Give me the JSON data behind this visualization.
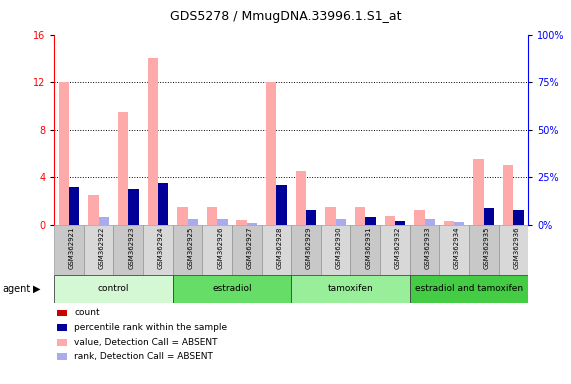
{
  "title": "GDS5278 / MmugDNA.33996.1.S1_at",
  "samples": [
    "GSM362921",
    "GSM362922",
    "GSM362923",
    "GSM362924",
    "GSM362925",
    "GSM362926",
    "GSM362927",
    "GSM362928",
    "GSM362929",
    "GSM362930",
    "GSM362931",
    "GSM362932",
    "GSM362933",
    "GSM362934",
    "GSM362935",
    "GSM362936"
  ],
  "count_values": [
    12.0,
    2.5,
    9.5,
    14.0,
    1.5,
    1.5,
    0.4,
    12.0,
    4.5,
    1.5,
    1.5,
    0.7,
    1.2,
    0.3,
    5.5,
    5.0
  ],
  "rank_values": [
    20.0,
    4.0,
    19.0,
    22.0,
    3.0,
    3.0,
    1.0,
    21.0,
    7.5,
    3.0,
    4.0,
    2.0,
    3.0,
    1.5,
    9.0,
    7.5
  ],
  "count_is_absent": [
    true,
    true,
    true,
    true,
    true,
    true,
    true,
    true,
    true,
    true,
    true,
    true,
    true,
    true,
    true,
    true
  ],
  "rank_is_absent": [
    false,
    true,
    false,
    false,
    true,
    true,
    true,
    false,
    false,
    true,
    false,
    false,
    true,
    true,
    false,
    false
  ],
  "groups": [
    {
      "label": "control",
      "start": 0,
      "end": 4,
      "color": "#d4f7d4"
    },
    {
      "label": "estradiol",
      "start": 4,
      "end": 8,
      "color": "#66dd66"
    },
    {
      "label": "tamoxifen",
      "start": 8,
      "end": 12,
      "color": "#99ee99"
    },
    {
      "label": "estradiol and tamoxifen",
      "start": 12,
      "end": 16,
      "color": "#44cc44"
    }
  ],
  "ylim_left": [
    0,
    16
  ],
  "ylim_right": [
    0,
    100
  ],
  "yticks_left": [
    0,
    4,
    8,
    12,
    16
  ],
  "yticks_right": [
    0,
    25,
    50,
    75,
    100
  ],
  "color_count": "#cc0000",
  "color_rank": "#000099",
  "color_count_absent": "#ffaaaa",
  "color_rank_absent": "#aaaaee",
  "bar_width": 0.35,
  "legend_items": [
    {
      "label": "count",
      "color": "#cc0000"
    },
    {
      "label": "percentile rank within the sample",
      "color": "#000099"
    },
    {
      "label": "value, Detection Call = ABSENT",
      "color": "#ffaaaa"
    },
    {
      "label": "rank, Detection Call = ABSENT",
      "color": "#aaaaee"
    }
  ]
}
